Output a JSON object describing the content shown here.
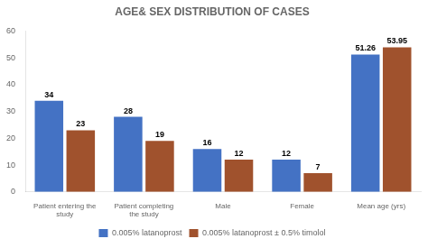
{
  "chart_data": {
    "type": "bar",
    "title": "AGE& SEX DISTRIBUTION OF CASES",
    "categories": [
      "Patient entering the\nstudy",
      "Patient completing\nthe study",
      "Male",
      "Female",
      "Mean age (yrs)"
    ],
    "series": [
      {
        "name": "0.005% latanoprost",
        "color": "#4472C4",
        "values": [
          34,
          28,
          16,
          12,
          51.26
        ]
      },
      {
        "name": "0.005% latanoprost ± 0.5% timolol",
        "color": "#A0522D",
        "values": [
          23,
          19,
          12,
          7,
          53.95
        ]
      }
    ],
    "ylim": [
      0,
      60
    ],
    "yticks": [
      0,
      10,
      20,
      30,
      40,
      50,
      60
    ],
    "grid": false,
    "legend": "bottom",
    "data_labels": true
  }
}
